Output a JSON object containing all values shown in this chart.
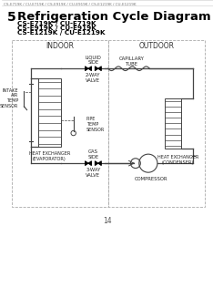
{
  "page_header": "CS-E719K / CU-E719K / CS-E919K / CU-E919K / CS-E1219K / CU-E1219K",
  "section_number": "5",
  "title": "Refrigeration Cycle Diagram",
  "subtitle_lines": [
    "CS-E719K / CU-E719K",
    "CS-E919K / CU-E919K",
    "CS-E1219K / CU-E1219K"
  ],
  "page_number": "14",
  "indoor_label": "INDOOR",
  "outdoor_label": "OUTDOOR",
  "labels": {
    "liquid_side": "LIQUID\nSIDE",
    "capillary_tube": "CAPILLARY\nTUBE",
    "two_way_valve": "2-WAY\nVALVE",
    "intake_air_temp_sensor": "INTAKE\nAIR\nTEMP\nSENSOR",
    "pipe_temp_sensor": "PIPE\nTEMP\nSENSOR",
    "heat_exchanger_evap": "HEAT EXCHANGER\n(EVAPORATOR)",
    "gas_side": "GAS\nSIDE",
    "three_way_valve": "3-WAY\nVALVE",
    "compressor": "COMPRESSOR",
    "heat_exchanger_cond": "HEAT EXCHANGER\n(CONDENSER)"
  },
  "bg_color": "#ffffff",
  "line_color": "#444444",
  "text_color": "#222222",
  "header_color": "#777777"
}
